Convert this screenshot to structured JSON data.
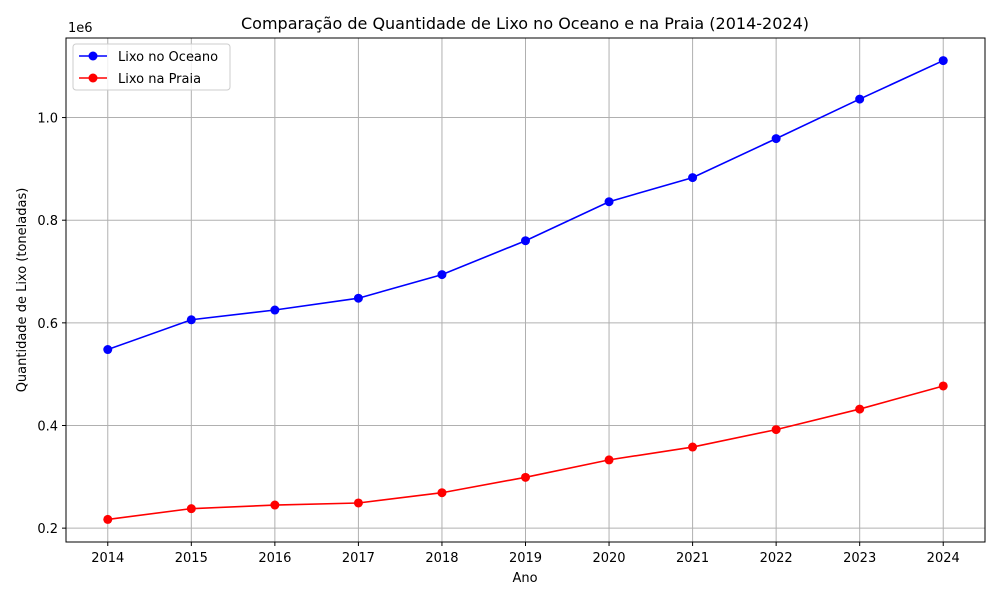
{
  "chart_data": {
    "type": "line",
    "title": "Comparação de Quantidade de Lixo no Oceano e na Praia (2014-2024)",
    "xlabel": "Ano",
    "ylabel": "Quantidade de Lixo (toneladas)",
    "y_offset_label": "1e6",
    "x": [
      2014,
      2015,
      2016,
      2017,
      2018,
      2019,
      2020,
      2021,
      2022,
      2023,
      2024
    ],
    "x_tick_labels": [
      "2014",
      "2015",
      "2016",
      "2017",
      "2018",
      "2019",
      "2020",
      "2021",
      "2022",
      "2023",
      "2024"
    ],
    "y_ticks": [
      0.2,
      0.4,
      0.6,
      0.8,
      1.0
    ],
    "y_tick_labels": [
      "0.2",
      "0.4",
      "0.6",
      "0.8",
      "1.0"
    ],
    "ylim": [
      0.173,
      1.155
    ],
    "xlim": [
      2013.5,
      2024.5
    ],
    "grid": true,
    "legend_position": "top-left",
    "series": [
      {
        "name": "Lixo no Oceano",
        "color": "#0000ff",
        "values": [
          0.548,
          0.606,
          0.625,
          0.648,
          0.694,
          0.76,
          0.836,
          0.883,
          0.959,
          1.036,
          1.111
        ]
      },
      {
        "name": "Lixo na Praia",
        "color": "#ff0000",
        "values": [
          0.217,
          0.238,
          0.245,
          0.249,
          0.269,
          0.299,
          0.333,
          0.358,
          0.392,
          0.432,
          0.477
        ]
      }
    ]
  }
}
